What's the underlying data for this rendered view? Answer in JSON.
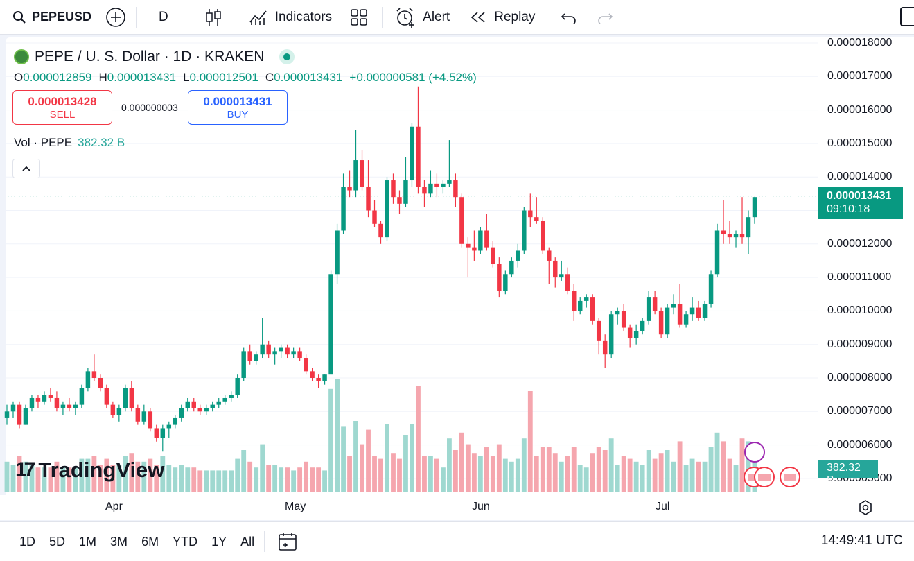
{
  "toolbar": {
    "symbol": "PEPEUSD",
    "interval": "D",
    "indicators_label": "Indicators",
    "alert_label": "Alert",
    "replay_label": "Replay"
  },
  "legend": {
    "title": "PEPE / U. S. Dollar · 1D · KRAKEN",
    "open_key": "O",
    "open": "0.000012859",
    "high_key": "H",
    "high": "0.000013431",
    "low_key": "L",
    "low": "0.000012501",
    "close_key": "C",
    "close": "0.000013431",
    "change": "+0.000000581 (+4.52%)"
  },
  "trade": {
    "sell_price": "0.000013428",
    "sell_label": "SELL",
    "spread": "0.000000003",
    "buy_price": "0.000013431",
    "buy_label": "BUY"
  },
  "volume_legend": {
    "label": "Vol · PEPE",
    "value": "382.32 B"
  },
  "price_axis": [
    "0.000018000",
    "0.000017000",
    "0.000016000",
    "0.000015000",
    "0.000014000",
    "0.000012000",
    "0.000011000",
    "0.000010000",
    "0.000009000",
    "0.000008000",
    "0.000007000",
    "0.000006000",
    "0.000005000"
  ],
  "last_price": {
    "price": "0.000013431",
    "countdown": "09:10:18"
  },
  "volume_tag": "382.32 B",
  "time_axis": [
    "Apr",
    "May",
    "Jun",
    "Jul"
  ],
  "ranges": [
    "1D",
    "5D",
    "1M",
    "3M",
    "6M",
    "YTD",
    "1Y",
    "All"
  ],
  "clock": "14:49:41 UTC",
  "brand": "TradingView",
  "colors": {
    "up": "#089981",
    "down": "#f23645",
    "vol_up": "#9fd8d0",
    "vol_down": "#f5a6ae"
  },
  "chart_data": {
    "type": "candlestick",
    "ylim": [
      5e-06,
      1.8e-05
    ],
    "up_color": "#089981",
    "down_color": "#f23645",
    "candles": [
      [
        6.8e-06,
        7.2e-06,
        6.6e-06,
        7e-06
      ],
      [
        7e-06,
        7.3e-06,
        6.8e-06,
        7.2e-06
      ],
      [
        7.2e-06,
        7.3e-06,
        6.5e-06,
        6.6e-06
      ],
      [
        6.6e-06,
        7.2e-06,
        6.6e-06,
        7.1e-06
      ],
      [
        7.1e-06,
        7.5e-06,
        7e-06,
        7.4e-06
      ],
      [
        7.4e-06,
        7.5e-06,
        7.1e-06,
        7.3e-06
      ],
      [
        7.3e-06,
        7.6e-06,
        7.2e-06,
        7.5e-06
      ],
      [
        7.5e-06,
        7.7e-06,
        7.3e-06,
        7.4e-06
      ],
      [
        7.4e-06,
        7.6e-06,
        7e-06,
        7.1e-06
      ],
      [
        7.1e-06,
        7.3e-06,
        6.9e-06,
        7.2e-06
      ],
      [
        7.2e-06,
        7.4e-06,
        7e-06,
        7.1e-06
      ],
      [
        7.1e-06,
        7.3e-06,
        6.9e-06,
        7.2e-06
      ],
      [
        7.2e-06,
        7.8e-06,
        7.1e-06,
        7.7e-06
      ],
      [
        7.7e-06,
        8.3e-06,
        7.6e-06,
        8.2e-06
      ],
      [
        8.2e-06,
        8.7e-06,
        7.9e-06,
        8e-06
      ],
      [
        8e-06,
        8.1e-06,
        7.6e-06,
        7.7e-06
      ],
      [
        7.7e-06,
        7.8e-06,
        7.1e-06,
        7.2e-06
      ],
      [
        7.2e-06,
        7.3e-06,
        6.8e-06,
        6.9e-06
      ],
      [
        6.9e-06,
        7.2e-06,
        6.7e-06,
        7.1e-06
      ],
      [
        7.1e-06,
        7.8e-06,
        7e-06,
        7.7e-06
      ],
      [
        7.7e-06,
        7.9e-06,
        7e-06,
        7.1e-06
      ],
      [
        7.1e-06,
        7.2e-06,
        6.6e-06,
        6.7e-06
      ],
      [
        6.7e-06,
        7.2e-06,
        6.6e-06,
        7e-06
      ],
      [
        7e-06,
        7.1e-06,
        6.4e-06,
        6.5e-06
      ],
      [
        6.5e-06,
        6.6e-06,
        6.1e-06,
        6.2e-06
      ],
      [
        6.2e-06,
        6.6e-06,
        5.8e-06,
        6.5e-06
      ],
      [
        6.5e-06,
        6.7e-06,
        6.2e-06,
        6.6e-06
      ],
      [
        6.6e-06,
        6.9e-06,
        6.5e-06,
        6.8e-06
      ],
      [
        6.8e-06,
        7.2e-06,
        6.7e-06,
        7.1e-06
      ],
      [
        7.1e-06,
        7.4e-06,
        7e-06,
        7.3e-06
      ],
      [
        7.3e-06,
        7.4e-06,
        7e-06,
        7.1e-06
      ],
      [
        7.1e-06,
        7.2e-06,
        6.9e-06,
        7e-06
      ],
      [
        7e-06,
        7.2e-06,
        6.9e-06,
        7.1e-06
      ],
      [
        7.1e-06,
        7.3e-06,
        7e-06,
        7.2e-06
      ],
      [
        7.2e-06,
        7.4e-06,
        7.1e-06,
        7.3e-06
      ],
      [
        7.3e-06,
        7.5e-06,
        7.2e-06,
        7.4e-06
      ],
      [
        7.4e-06,
        7.6e-06,
        7.3e-06,
        7.5e-06
      ],
      [
        7.5e-06,
        8.1e-06,
        7.4e-06,
        8e-06
      ],
      [
        8e-06,
        8.9e-06,
        7.9e-06,
        8.8e-06
      ],
      [
        8.8e-06,
        9e-06,
        8.4e-06,
        8.5e-06
      ],
      [
        8.5e-06,
        8.8e-06,
        8.4e-06,
        8.7e-06
      ],
      [
        8.7e-06,
        9.8e-06,
        8.6e-06,
        9e-06
      ],
      [
        9e-06,
        9.1e-06,
        8.6e-06,
        8.7e-06
      ],
      [
        8.7e-06,
        8.9e-06,
        8.4e-06,
        8.8e-06
      ],
      [
        8.8e-06,
        9e-06,
        8.6e-06,
        8.9e-06
      ],
      [
        8.9e-06,
        9e-06,
        8.6e-06,
        8.7e-06
      ],
      [
        8.7e-06,
        8.9e-06,
        8.6e-06,
        8.8e-06
      ],
      [
        8.8e-06,
        8.9e-06,
        8.5e-06,
        8.6e-06
      ],
      [
        8.6e-06,
        8.7e-06,
        8.1e-06,
        8.2e-06
      ],
      [
        8.2e-06,
        8.3e-06,
        7.9e-06,
        8e-06
      ],
      [
        8e-06,
        8.1e-06,
        7.7e-06,
        7.9e-06
      ],
      [
        7.9e-06,
        8.1e-06,
        7.8e-06,
        8.1e-06
      ],
      [
        8.1e-06,
        1.12e-05,
        8.1e-06,
        1.11e-05
      ],
      [
        1.11e-05,
        1.26e-05,
        1.08e-05,
        1.24e-05
      ],
      [
        1.24e-05,
        1.41e-05,
        1.23e-05,
        1.37e-05
      ],
      [
        1.37e-05,
        1.42e-05,
        1.34e-05,
        1.36e-05
      ],
      [
        1.36e-05,
        1.54e-05,
        1.34e-05,
        1.45e-05
      ],
      [
        1.45e-05,
        1.48e-05,
        1.36e-05,
        1.37e-05
      ],
      [
        1.37e-05,
        1.45e-05,
        1.28e-05,
        1.3e-05
      ],
      [
        1.3e-05,
        1.33e-05,
        1.25e-05,
        1.26e-05
      ],
      [
        1.26e-05,
        1.27e-05,
        1.2e-05,
        1.22e-05
      ],
      [
        1.22e-05,
        1.4e-05,
        1.21e-05,
        1.39e-05
      ],
      [
        1.39e-05,
        1.41e-05,
        1.32e-05,
        1.34e-05
      ],
      [
        1.34e-05,
        1.36e-05,
        1.29e-05,
        1.32e-05
      ],
      [
        1.32e-05,
        1.46e-05,
        1.31e-05,
        1.39e-05
      ],
      [
        1.39e-05,
        1.56e-05,
        1.37e-05,
        1.55e-05
      ],
      [
        1.55e-05,
        1.67e-05,
        1.35e-05,
        1.37e-05
      ],
      [
        1.37e-05,
        1.39e-05,
        1.31e-05,
        1.35e-05
      ],
      [
        1.35e-05,
        1.42e-05,
        1.34e-05,
        1.38e-05
      ],
      [
        1.38e-05,
        1.41e-05,
        1.34e-05,
        1.37e-05
      ],
      [
        1.37e-05,
        1.39e-05,
        1.35e-05,
        1.38e-05
      ],
      [
        1.38e-05,
        1.51e-05,
        1.37e-05,
        1.39e-05
      ],
      [
        1.39e-05,
        1.41e-05,
        1.31e-05,
        1.34e-05
      ],
      [
        1.34e-05,
        1.35e-05,
        1.19e-05,
        1.2e-05
      ],
      [
        1.2e-05,
        1.22e-05,
        1.1e-05,
        1.19e-05
      ],
      [
        1.19e-05,
        1.24e-05,
        1.15e-05,
        1.18e-05
      ],
      [
        1.18e-05,
        1.25e-05,
        1.17e-05,
        1.24e-05
      ],
      [
        1.24e-05,
        1.29e-05,
        1.18e-05,
        1.19e-05
      ],
      [
        1.19e-05,
        1.21e-05,
        1.13e-05,
        1.14e-05
      ],
      [
        1.14e-05,
        1.16e-05,
        1.04e-05,
        1.06e-05
      ],
      [
        1.06e-05,
        1.12e-05,
        1.05e-05,
        1.11e-05
      ],
      [
        1.11e-05,
        1.16e-05,
        1.1e-05,
        1.15e-05
      ],
      [
        1.15e-05,
        1.2e-05,
        1.13e-05,
        1.18e-05
      ],
      [
        1.18e-05,
        1.31e-05,
        1.17e-05,
        1.3e-05
      ],
      [
        1.3e-05,
        1.35e-05,
        1.25e-05,
        1.28e-05
      ],
      [
        1.28e-05,
        1.34e-05,
        1.26e-05,
        1.27e-05
      ],
      [
        1.27e-05,
        1.28e-05,
        1.17e-05,
        1.18e-05
      ],
      [
        1.18e-05,
        1.19e-05,
        1.08e-05,
        1.15e-05
      ],
      [
        1.15e-05,
        1.16e-05,
        1.07e-05,
        1.1e-05
      ],
      [
        1.1e-05,
        1.15e-05,
        1.09e-05,
        1.11e-05
      ],
      [
        1.11e-05,
        1.13e-05,
        1.05e-05,
        1.06e-05
      ],
      [
        1.06e-05,
        1.08e-05,
        9.7e-06,
        1e-05
      ],
      [
        1e-05,
        1.04e-05,
        9.9e-06,
        1.03e-05
      ],
      [
        1.03e-05,
        1.05e-05,
        1.01e-05,
        1.04e-05
      ],
      [
        1.04e-05,
        1.05e-05,
        9.6e-06,
        9.7e-06
      ],
      [
        9.7e-06,
        9.8e-06,
        8.7e-06,
        9.1e-06
      ],
      [
        9.1e-06,
        9.3e-06,
        8.3e-06,
        8.7e-06
      ],
      [
        8.7e-06,
        1e-05,
        8.6e-06,
        9.9e-06
      ],
      [
        9.9e-06,
        1.01e-05,
        9.6e-06,
        1e-05
      ],
      [
        1e-05,
        1.02e-05,
        9.4e-06,
        9.5e-06
      ],
      [
        9.5e-06,
        9.6e-06,
        8.9e-06,
        9.2e-06
      ],
      [
        9.2e-06,
        9.6e-06,
        9e-06,
        9.4e-06
      ],
      [
        9.4e-06,
        9.8e-06,
        9.3e-06,
        9.7e-06
      ],
      [
        9.7e-06,
        1.06e-05,
        9.6e-06,
        1.04e-05
      ],
      [
        1.04e-05,
        1.06e-05,
        9.9e-06,
        1e-05
      ],
      [
        1e-05,
        1.01e-05,
        9.2e-06,
        9.3e-06
      ],
      [
        9.3e-06,
        1.02e-05,
        9.2e-06,
        1.01e-05
      ],
      [
        1.01e-05,
        1.05e-05,
        9.9e-06,
        1.02e-05
      ],
      [
        1.02e-05,
        1.08e-05,
        9.5e-06,
        9.6e-06
      ],
      [
        9.6e-06,
        1e-05,
        9.5e-06,
        9.9e-06
      ],
      [
        9.9e-06,
        1.04e-05,
        9.7e-06,
        1.01e-05
      ],
      [
        1.01e-05,
        1.03e-05,
        9.7e-06,
        9.8e-06
      ],
      [
        9.8e-06,
        1.03e-05,
        9.7e-06,
        1.02e-05
      ],
      [
        1.02e-05,
        1.12e-05,
        1.01e-05,
        1.11e-05
      ],
      [
        1.11e-05,
        1.26e-05,
        1.1e-05,
        1.24e-05
      ],
      [
        1.24e-05,
        1.33e-05,
        1.2e-05,
        1.23e-05
      ],
      [
        1.23e-05,
        1.27e-05,
        1.2e-05,
        1.22e-05
      ],
      [
        1.22e-05,
        1.24e-05,
        1.19e-05,
        1.23e-05
      ],
      [
        1.23e-05,
        1.34e-05,
        1.2e-05,
        1.22e-05
      ],
      [
        1.22e-05,
        1.3e-05,
        1.17e-05,
        1.28e-05
      ],
      [
        1.28e-05,
        1.34e-05,
        1.26e-05,
        1.34e-05
      ]
    ],
    "volume_max": 8e-06
  }
}
